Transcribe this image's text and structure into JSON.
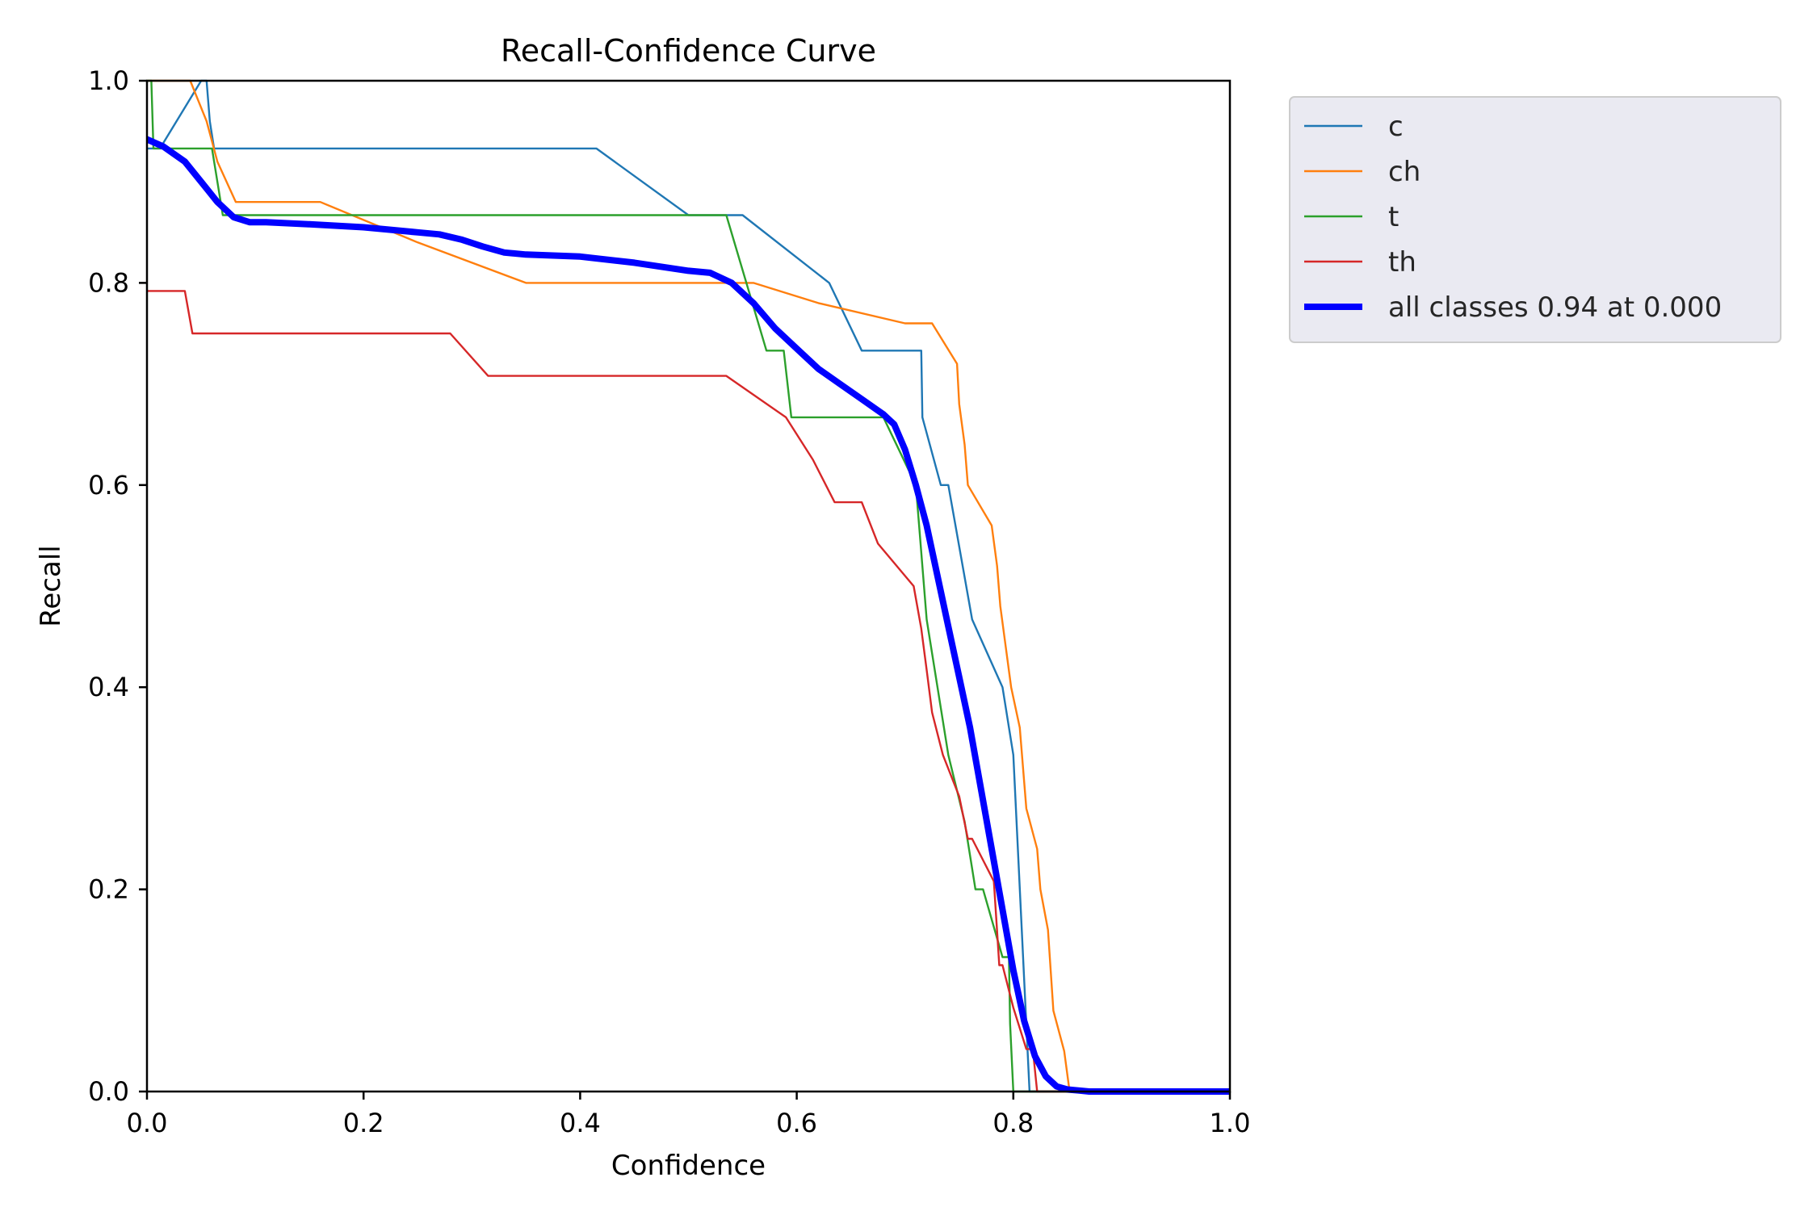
{
  "chart_data": {
    "type": "line",
    "title": "Recall-Confidence Curve",
    "xlabel": "Confidence",
    "ylabel": "Recall",
    "xlim": [
      0,
      1
    ],
    "ylim": [
      0,
      1
    ],
    "xticks": [
      "0.0",
      "0.2",
      "0.4",
      "0.6",
      "0.8",
      "1.0"
    ],
    "yticks": [
      "0.0",
      "0.2",
      "0.4",
      "0.6",
      "0.8",
      "1.0"
    ],
    "grid": false,
    "legend_position": "outside-top-right",
    "series": [
      {
        "name": "c",
        "color": "#1f77b4",
        "x": [
          0.0,
          0.006,
          0.012,
          0.05,
          0.055,
          0.058,
          0.062,
          0.09,
          0.2,
          0.3,
          0.415,
          0.5,
          0.51,
          0.55,
          0.63,
          0.66,
          0.69,
          0.715,
          0.716,
          0.733,
          0.74,
          0.762,
          0.79,
          0.8,
          0.803,
          0.815,
          0.816,
          1.0
        ],
        "y": [
          0.933,
          0.933,
          0.933,
          1.0,
          1.0,
          0.96,
          0.933,
          0.933,
          0.933,
          0.933,
          0.933,
          0.867,
          0.867,
          0.867,
          0.8,
          0.733,
          0.733,
          0.733,
          0.667,
          0.6,
          0.6,
          0.467,
          0.4,
          0.333,
          0.267,
          0.0,
          0.0,
          0.0
        ]
      },
      {
        "name": "ch",
        "color": "#ff7f0e",
        "x": [
          0.0,
          0.04,
          0.055,
          0.065,
          0.082,
          0.1,
          0.16,
          0.25,
          0.35,
          0.56,
          0.62,
          0.7,
          0.725,
          0.748,
          0.75,
          0.755,
          0.758,
          0.78,
          0.785,
          0.788,
          0.793,
          0.798,
          0.806,
          0.812,
          0.822,
          0.825,
          0.832,
          0.837,
          0.847,
          0.852,
          1.0
        ],
        "y": [
          1.0,
          1.0,
          0.96,
          0.92,
          0.88,
          0.88,
          0.88,
          0.84,
          0.8,
          0.8,
          0.78,
          0.76,
          0.76,
          0.72,
          0.68,
          0.64,
          0.6,
          0.56,
          0.52,
          0.48,
          0.44,
          0.4,
          0.36,
          0.28,
          0.24,
          0.2,
          0.16,
          0.08,
          0.04,
          0.0,
          0.0
        ]
      },
      {
        "name": "t",
        "color": "#2ca02c",
        "x": [
          0.0,
          0.004,
          0.006,
          0.008,
          0.06,
          0.07,
          0.1,
          0.3,
          0.53,
          0.535,
          0.572,
          0.588,
          0.595,
          0.6,
          0.68,
          0.71,
          0.72,
          0.73,
          0.74,
          0.755,
          0.765,
          0.772,
          0.79,
          0.796,
          0.797,
          0.8,
          1.0
        ],
        "y": [
          1.0,
          1.0,
          0.933,
          0.933,
          0.933,
          0.867,
          0.867,
          0.867,
          0.867,
          0.867,
          0.733,
          0.733,
          0.667,
          0.667,
          0.667,
          0.6,
          0.467,
          0.4,
          0.333,
          0.267,
          0.2,
          0.2,
          0.133,
          0.133,
          0.067,
          0.0,
          0.0
        ]
      },
      {
        "name": "th",
        "color": "#d62728",
        "x": [
          0.0,
          0.035,
          0.042,
          0.2,
          0.28,
          0.315,
          0.4,
          0.535,
          0.59,
          0.615,
          0.635,
          0.66,
          0.675,
          0.708,
          0.715,
          0.72,
          0.725,
          0.735,
          0.75,
          0.758,
          0.762,
          0.782,
          0.787,
          0.79,
          0.8,
          0.812,
          0.818,
          0.822,
          1.0
        ],
        "y": [
          0.792,
          0.792,
          0.75,
          0.75,
          0.75,
          0.708,
          0.708,
          0.708,
          0.667,
          0.625,
          0.583,
          0.583,
          0.542,
          0.5,
          0.458,
          0.417,
          0.375,
          0.333,
          0.292,
          0.25,
          0.25,
          0.208,
          0.125,
          0.125,
          0.083,
          0.042,
          0.042,
          0.0,
          0.0
        ]
      },
      {
        "name": "all classes 0.94 at 0.000",
        "color": "#0000ff",
        "bold": true,
        "x": [
          0.0,
          0.015,
          0.035,
          0.05,
          0.065,
          0.08,
          0.095,
          0.11,
          0.15,
          0.2,
          0.25,
          0.27,
          0.29,
          0.31,
          0.33,
          0.35,
          0.4,
          0.45,
          0.5,
          0.52,
          0.54,
          0.56,
          0.58,
          0.6,
          0.62,
          0.64,
          0.66,
          0.68,
          0.69,
          0.7,
          0.71,
          0.72,
          0.73,
          0.74,
          0.75,
          0.76,
          0.77,
          0.78,
          0.79,
          0.8,
          0.81,
          0.82,
          0.83,
          0.84,
          0.85,
          0.86,
          0.87,
          0.88,
          0.9,
          1.0
        ],
        "y": [
          0.942,
          0.935,
          0.92,
          0.9,
          0.88,
          0.865,
          0.86,
          0.86,
          0.858,
          0.855,
          0.85,
          0.848,
          0.843,
          0.836,
          0.83,
          0.828,
          0.826,
          0.82,
          0.812,
          0.81,
          0.8,
          0.78,
          0.755,
          0.735,
          0.715,
          0.7,
          0.685,
          0.67,
          0.66,
          0.635,
          0.6,
          0.56,
          0.51,
          0.46,
          0.41,
          0.36,
          0.3,
          0.24,
          0.18,
          0.12,
          0.07,
          0.035,
          0.015,
          0.005,
          0.002,
          0.001,
          0.0,
          0.0,
          0.0,
          0.0
        ]
      }
    ]
  }
}
